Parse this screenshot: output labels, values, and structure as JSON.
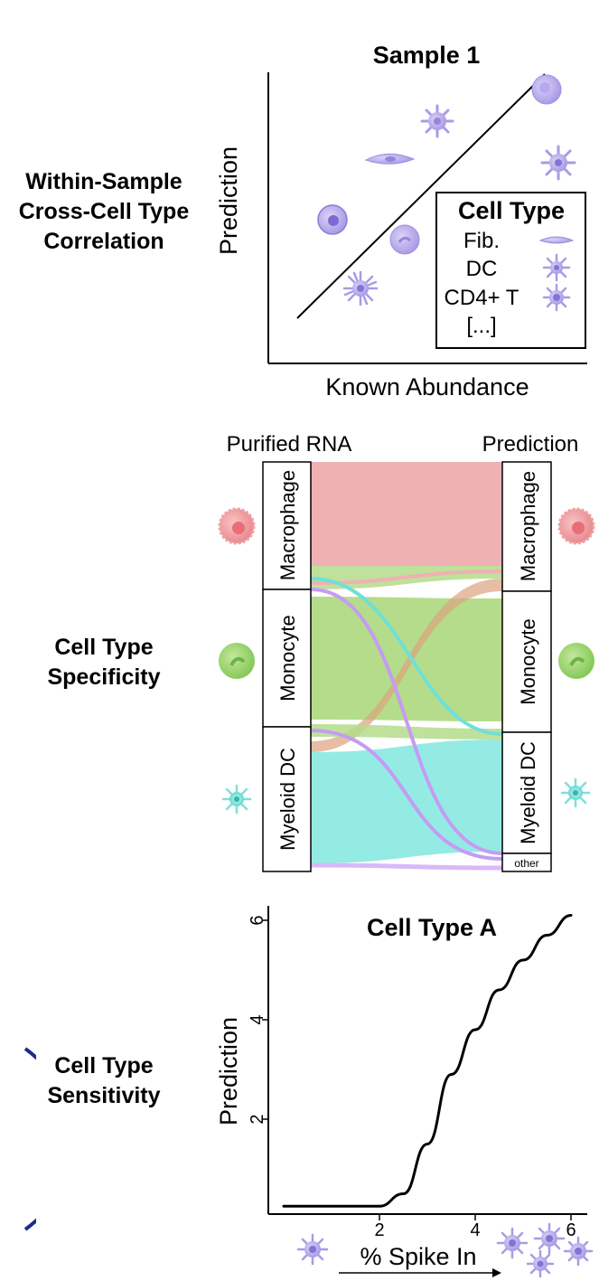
{
  "rows": {
    "correlation": [
      "Within-Sample",
      "Cross-Cell Type",
      "Correlation"
    ],
    "specificity": [
      "Cell Type",
      "Specificity"
    ],
    "sensitivity": [
      "Cell Type",
      "Sensitivity"
    ]
  },
  "panel1": {
    "title": "Sample 1",
    "xlabel": "Known Abundance",
    "ylabel": "Prediction",
    "legend": {
      "title": "Cell Type",
      "entries": [
        "Fib.",
        "DC",
        "CD4+ T",
        "[...]"
      ]
    }
  },
  "panel2": {
    "left_title": "Purified RNA",
    "right_title": "Prediction",
    "left_nodes": [
      "Macrophage",
      "Monocyte",
      "Myeloid DC"
    ],
    "right_nodes": [
      "Macrophage",
      "Monocyte",
      "Myeloid DC",
      "other"
    ],
    "colors": {
      "macrophage": "#ee8f93",
      "monocyte": "#8dcf4e",
      "dc": "#56dcd4",
      "other": "#c49cf3"
    }
  },
  "panel3": {
    "title": "Cell Type A",
    "xlabel": "% Spike In",
    "ylabel": "Prediction",
    "xticks": [
      "2",
      "4",
      "6"
    ],
    "yticks": [
      "2",
      "4",
      "6"
    ]
  },
  "chart_data": {
    "type": "line",
    "title": "Cell Type A",
    "xlabel": "% Spike In",
    "ylabel": "Prediction",
    "xlim": [
      0,
      6
    ],
    "ylim": [
      0,
      6
    ],
    "x": [
      0,
      1,
      2,
      2.5,
      3,
      3.5,
      4,
      4.5,
      5,
      5.5,
      6
    ],
    "y": [
      0.25,
      0.25,
      0.25,
      0.5,
      1.5,
      2.9,
      3.8,
      4.6,
      5.2,
      5.7,
      6.1
    ]
  }
}
